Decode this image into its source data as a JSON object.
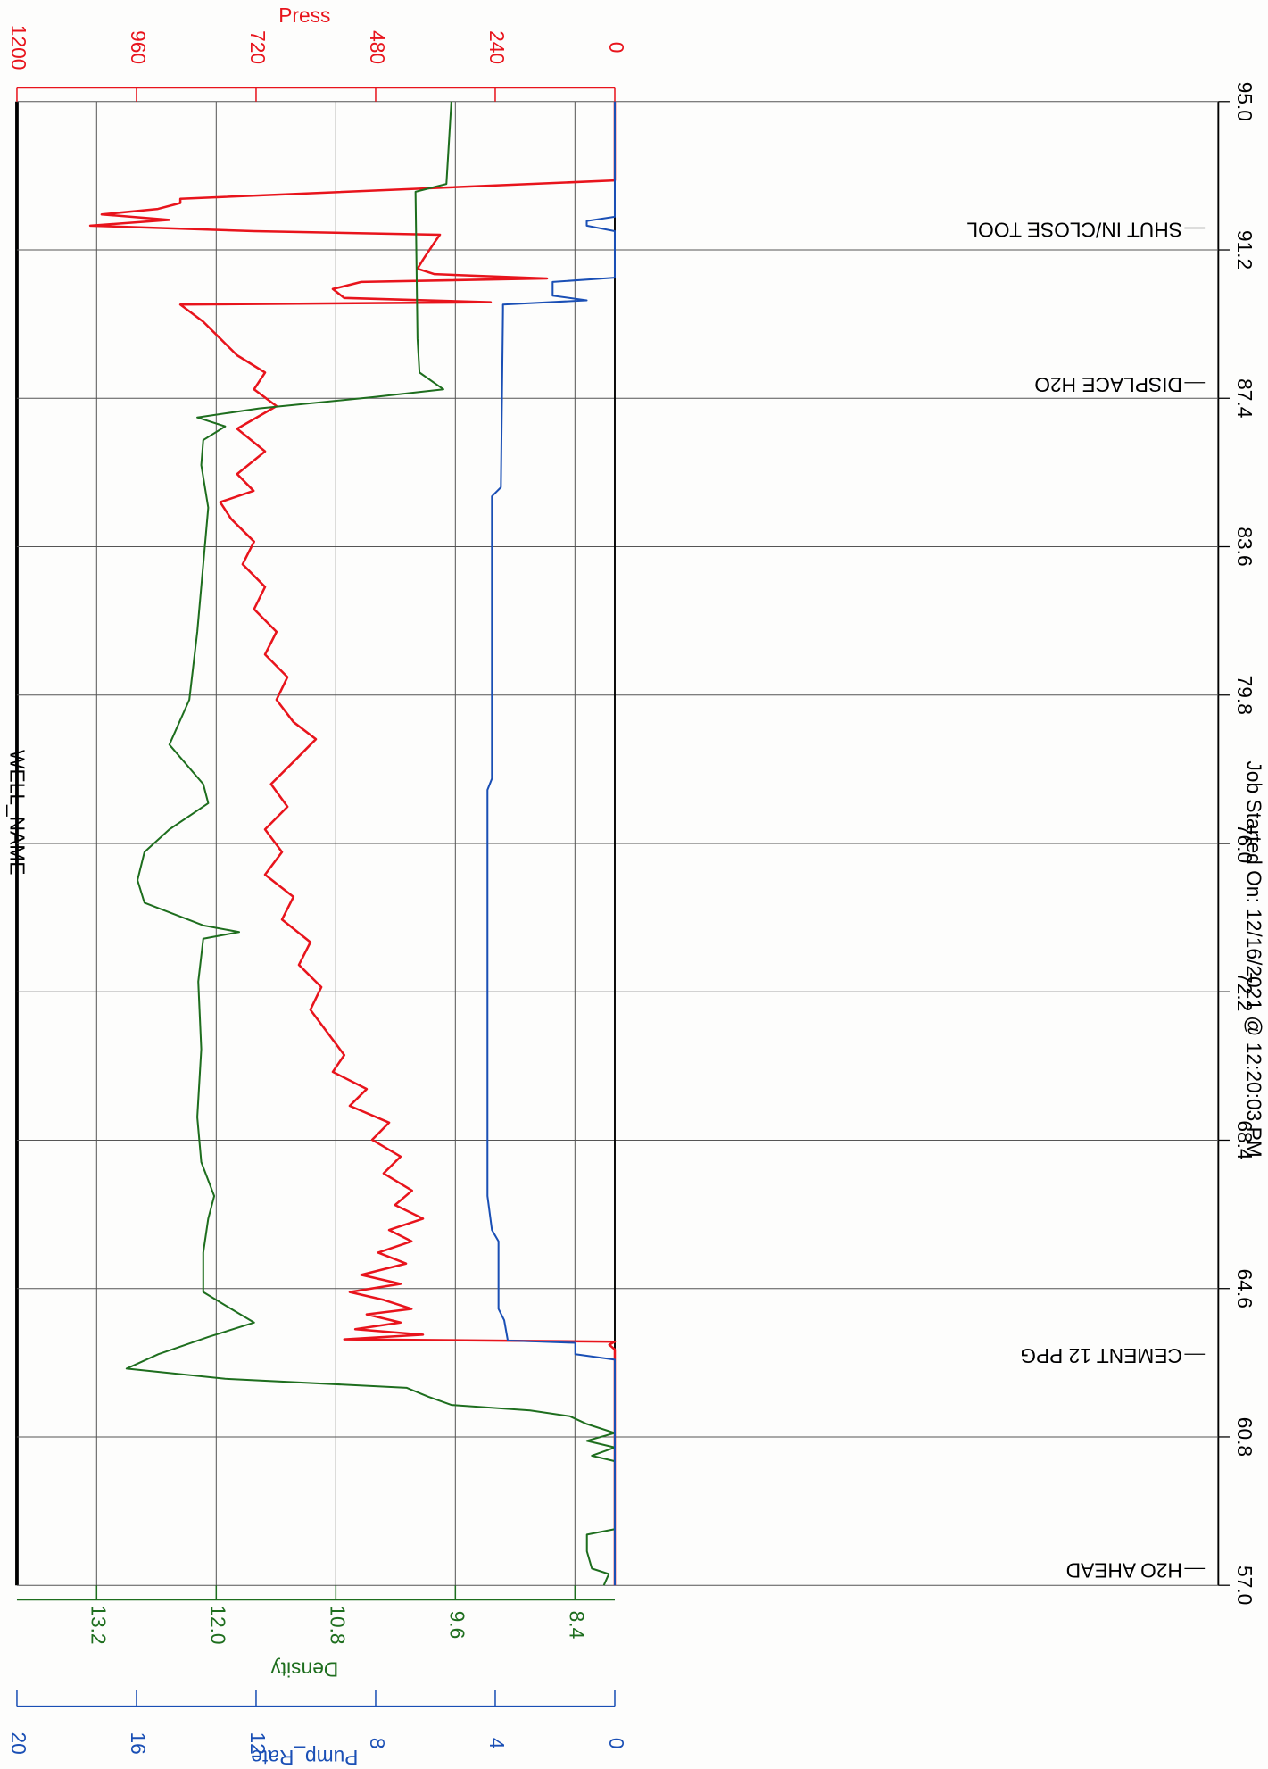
{
  "chart_data": {
    "type": "line",
    "title": "WELL_NAME",
    "subtitle": "Job Started On: 12/16/2021 @ 12:20:03 PM",
    "xlim": [
      57,
      95
    ],
    "xticks": [
      {
        "value": 57,
        "label": "57.0"
      },
      60.8,
      64.6,
      68.4,
      72.2,
      {
        "value": 76,
        "label": "76.0"
      },
      79.8,
      83.6,
      87.4,
      91.2,
      {
        "value": 95,
        "label": "95.0"
      }
    ],
    "ylim": [
      0,
      1200
    ],
    "yticks": [
      0,
      240,
      480,
      720,
      960,
      1200
    ],
    "y2lim": [
      8,
      14
    ],
    "y2ticks": [
      8.4,
      9.6,
      10.8,
      {
        "value": 12,
        "label": "12.0"
      },
      13.2
    ],
    "y3lim": [
      0,
      20
    ],
    "y3ticks": [
      0,
      4,
      8,
      12,
      16,
      20
    ],
    "grid": true,
    "annotations": [
      {
        "x": 57.43,
        "text": "H2O AHEAD"
      },
      {
        "x": 62.92,
        "text": "CEMENT 12 PPG"
      },
      {
        "x": 87.8,
        "text": "DISPLACE H2O"
      },
      {
        "x": 91.76,
        "text": "SHUT IN/CLOSE TOOL"
      }
    ],
    "series": [
      {
        "name": "Press",
        "color": "#e8141c",
        "axis": "y",
        "x": [
          57.0,
          63.04,
          63.16,
          63.24,
          63.3,
          63.42,
          63.56,
          63.73,
          63.94,
          64.08,
          64.31,
          64.51,
          64.72,
          64.95,
          65.24,
          65.52,
          65.81,
          66.1,
          66.39,
          66.74,
          67.11,
          67.55,
          67.98,
          68.41,
          68.85,
          69.28,
          69.71,
          70.15,
          70.58,
          71.16,
          71.74,
          72.32,
          72.89,
          73.47,
          74.05,
          74.63,
          75.2,
          75.78,
          76.36,
          76.94,
          77.52,
          78.09,
          78.67,
          79.11,
          79.68,
          80.26,
          80.84,
          81.42,
          82.0,
          82.57,
          83.15,
          83.73,
          84.31,
          84.74,
          85.03,
          85.46,
          86.04,
          86.62,
          87.2,
          87.63,
          88.06,
          88.5,
          88.93,
          89.36,
          89.8,
          89.86,
          89.97,
          90.2,
          90.38,
          90.47,
          90.58,
          90.72,
          90.95,
          91.39,
          91.59,
          91.68,
          91.82,
          91.97,
          92.11,
          92.25,
          92.4,
          92.51,
          92.98,
          95.0
        ],
        "values": [
          0,
          0,
          11,
          0,
          543,
          385,
          521,
          430,
          498,
          408,
          464,
          532,
          430,
          509,
          419,
          475,
          408,
          453,
          385,
          441,
          407,
          464,
          430,
          487,
          453,
          532,
          498,
          566,
          543,
          577,
          611,
          589,
          634,
          611,
          668,
          645,
          702,
          668,
          702,
          657,
          690,
          645,
          600,
          645,
          679,
          657,
          702,
          679,
          724,
          702,
          747,
          724,
          770,
          792,
          725,
          758,
          702,
          758,
          679,
          724,
          702,
          758,
          792,
          826,
          872,
          249,
          543,
          566,
          509,
          136,
          362,
          396,
          385,
          362,
          351,
          724,
          1053,
          894,
          1030,
          917,
          872,
          872,
          0,
          0
        ]
      },
      {
        "name": "Density",
        "color": "#1e6e1e",
        "axis": "y2",
        "x": [
          57.0,
          57.29,
          57.43,
          57.87,
          58.3,
          58.44,
          60.18,
          60.32,
          60.53,
          60.7,
          60.9,
          61.13,
          61.33,
          61.48,
          61.62,
          61.83,
          62.06,
          62.29,
          62.55,
          62.92,
          63.36,
          63.73,
          64.08,
          64.51,
          65.52,
          66.39,
          66.97,
          67.84,
          68.99,
          70.73,
          72.46,
          73.56,
          73.73,
          73.9,
          74.48,
          75.06,
          75.78,
          76.36,
          77.03,
          77.52,
          78.53,
          79.68,
          81.42,
          83.15,
          84.6,
          85.69,
          86.33,
          86.68,
          86.91,
          87.14,
          87.43,
          87.63,
          88.06,
          88.93,
          92.69,
          92.89,
          95.0
        ],
        "values": [
          8.11,
          8.06,
          8.23,
          8.28,
          8.28,
          8.0,
          8.0,
          8.23,
          8.0,
          8.28,
          8.0,
          8.28,
          8.45,
          8.85,
          9.64,
          9.87,
          10.09,
          11.91,
          12.9,
          12.58,
          12.08,
          11.62,
          11.85,
          12.13,
          12.13,
          12.08,
          12.02,
          12.15,
          12.19,
          12.15,
          12.18,
          12.13,
          11.77,
          12.13,
          12.72,
          12.79,
          12.72,
          12.47,
          12.08,
          12.13,
          12.47,
          12.27,
          12.19,
          12.13,
          12.08,
          12.15,
          12.13,
          11.91,
          12.19,
          11.57,
          10.43,
          9.72,
          9.96,
          9.98,
          10.0,
          9.69,
          9.64
        ]
      },
      {
        "name": "Pump_Rate",
        "color": "#1a4fb5",
        "axis": "y3",
        "x": [
          57.0,
          62.78,
          62.92,
          63.21,
          63.27,
          63.79,
          64.08,
          65.81,
          66.1,
          66.97,
          77.37,
          77.66,
          84.89,
          85.12,
          89.65,
          89.8,
          89.91,
          90.03,
          90.38,
          90.49,
          91.68,
          91.82,
          91.94,
          92.05,
          95.0
        ],
        "values": [
          0,
          0,
          1.32,
          1.32,
          3.58,
          3.7,
          3.89,
          3.89,
          4.11,
          4.26,
          4.26,
          4.11,
          4.11,
          3.81,
          3.74,
          3.74,
          0.94,
          2.08,
          2.08,
          0,
          0,
          0.94,
          0.94,
          0,
          0
        ]
      }
    ]
  }
}
